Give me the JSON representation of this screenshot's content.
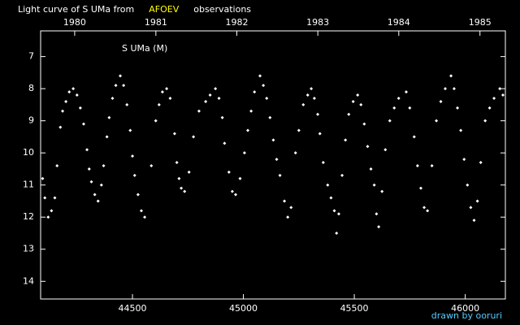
{
  "chart_data": {
    "type": "scatter",
    "title_segments": [
      {
        "text": "Light curve of S UMa from",
        "color": "#ffffff"
      },
      {
        "text": "AFOEV",
        "color": "#ffff00"
      },
      {
        "text": "observations",
        "color": "#ffffff"
      }
    ],
    "annotation": "S UMa (M)",
    "credit": "drawn by ooruri",
    "credit_color": "#55ccff",
    "color": "#ffffff",
    "xlim": [
      44086,
      46181
    ],
    "ylim": [
      6.2,
      14.55
    ],
    "y_inverted": true,
    "xticks": [
      44500,
      45000,
      45500,
      46000
    ],
    "yticks": [
      7,
      8,
      9,
      10,
      11,
      12,
      13,
      14
    ],
    "x2ticks": [
      {
        "value": 44239.5,
        "label": "1980"
      },
      {
        "value": 44605.5,
        "label": "1981"
      },
      {
        "value": 44970.5,
        "label": "1982"
      },
      {
        "value": 45335.5,
        "label": "1983"
      },
      {
        "value": 45700.5,
        "label": "1984"
      },
      {
        "value": 46066.5,
        "label": "1985"
      }
    ],
    "x": [
      44095,
      44105,
      44120,
      44135,
      44150,
      44160,
      44175,
      44185,
      44200,
      44215,
      44233,
      44250,
      44265,
      44280,
      44295,
      44305,
      44315,
      44330,
      44345,
      44360,
      44370,
      44385,
      44395,
      44410,
      44425,
      44445,
      44460,
      44475,
      44490,
      44500,
      44510,
      44525,
      44540,
      44555,
      44585,
      44605,
      44620,
      44635,
      44654,
      44670,
      44690,
      44700,
      44710,
      44720,
      44735,
      44755,
      44775,
      44800,
      44830,
      44850,
      44874,
      44890,
      44905,
      44915,
      44935,
      44950,
      44965,
      44985,
      45005,
      45020,
      45035,
      45050,
      45075,
      45090,
      45105,
      45120,
      45135,
      45150,
      45165,
      45185,
      45200,
      45215,
      45235,
      45250,
      45270,
      45290,
      45306,
      45320,
      45335,
      45345,
      45360,
      45380,
      45395,
      45410,
      45420,
      45430,
      45445,
      45460,
      45475,
      45495,
      45515,
      45530,
      45545,
      45560,
      45575,
      45590,
      45600,
      45610,
      45625,
      45640,
      45660,
      45680,
      45700,
      45734,
      45750,
      45770,
      45785,
      45800,
      45815,
      45830,
      45850,
      45870,
      45890,
      45910,
      45936,
      45950,
      45965,
      45980,
      45995,
      46010,
      46025,
      46040,
      46055,
      46070,
      46090,
      46110,
      46130,
      46156,
      46170
    ],
    "values": [
      10.8,
      11.4,
      12.0,
      11.8,
      11.4,
      10.4,
      9.2,
      8.7,
      8.4,
      8.1,
      8.0,
      8.2,
      8.6,
      9.1,
      9.9,
      10.5,
      10.9,
      11.3,
      11.5,
      11.0,
      10.4,
      9.5,
      8.9,
      8.3,
      7.9,
      7.6,
      7.9,
      8.5,
      9.3,
      10.1,
      10.7,
      11.3,
      11.8,
      12.0,
      10.4,
      9.0,
      8.5,
      8.1,
      8.0,
      8.3,
      9.4,
      10.3,
      10.8,
      11.1,
      11.2,
      10.6,
      9.5,
      8.7,
      8.4,
      8.2,
      8.0,
      8.3,
      8.9,
      9.7,
      10.6,
      11.2,
      11.3,
      10.8,
      10.0,
      9.3,
      8.7,
      8.1,
      7.6,
      7.9,
      8.3,
      8.9,
      9.6,
      10.2,
      10.7,
      11.5,
      12.0,
      11.7,
      10.0,
      9.3,
      8.5,
      8.2,
      8.0,
      8.3,
      8.8,
      9.4,
      10.3,
      11.0,
      11.4,
      11.8,
      12.5,
      11.9,
      10.7,
      9.6,
      8.8,
      8.4,
      8.2,
      8.5,
      9.1,
      9.8,
      10.5,
      11.0,
      11.9,
      12.3,
      11.2,
      9.9,
      9.0,
      8.6,
      8.3,
      8.1,
      8.6,
      9.5,
      10.4,
      11.1,
      11.7,
      11.8,
      10.4,
      9.0,
      8.4,
      8.0,
      7.6,
      8.0,
      8.6,
      9.3,
      10.2,
      11.0,
      11.7,
      12.1,
      11.5,
      10.3,
      9.0,
      8.6,
      8.3,
      8.0,
      8.2
    ]
  }
}
